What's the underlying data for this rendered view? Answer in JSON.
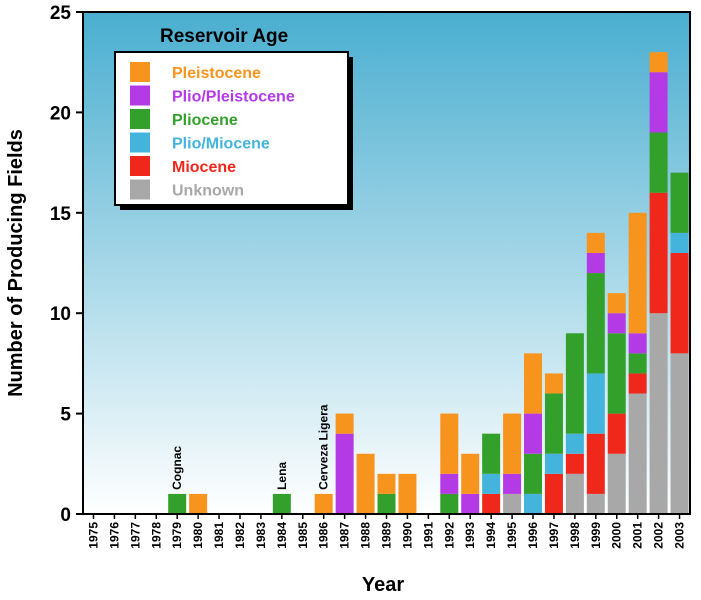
{
  "chart_data": {
    "type": "bar",
    "stacked": true,
    "title": "",
    "xlabel": "Year",
    "ylabel": "Number of Producing Fields",
    "ylim": [
      0,
      25
    ],
    "yticks": [
      0,
      5,
      10,
      15,
      20,
      25
    ],
    "categories": [
      "1975",
      "1976",
      "1977",
      "1978",
      "1979",
      "1980",
      "1981",
      "1982",
      "1983",
      "1984",
      "1985",
      "1986",
      "1987",
      "1988",
      "1989",
      "1990",
      "1991",
      "1992",
      "1993",
      "1994",
      "1995",
      "1996",
      "1997",
      "1998",
      "1999",
      "2000",
      "2001",
      "2002",
      "2003"
    ],
    "legend_title": "Reservoir Age",
    "legend_position": "top-left",
    "series": [
      {
        "name": "Unknown",
        "color": "#a8a8a8",
        "values": [
          0,
          0,
          0,
          0,
          0,
          0,
          0,
          0,
          0,
          0,
          0,
          0,
          0,
          0,
          0,
          0,
          0,
          0,
          0,
          0,
          1,
          0,
          0,
          2,
          1,
          3,
          6,
          10,
          8
        ]
      },
      {
        "name": "Miocene",
        "color": "#f0281c",
        "values": [
          0,
          0,
          0,
          0,
          0,
          0,
          0,
          0,
          0,
          0,
          0,
          0,
          0,
          0,
          0,
          0,
          0,
          0,
          0,
          1,
          0,
          0,
          2,
          1,
          3,
          2,
          1,
          6,
          5
        ]
      },
      {
        "name": "Plio/Miocene",
        "color": "#44b4dc",
        "values": [
          0,
          0,
          0,
          0,
          0,
          0,
          0,
          0,
          0,
          0,
          0,
          0,
          0,
          0,
          0,
          0,
          0,
          0,
          0,
          1,
          0,
          1,
          1,
          1,
          3,
          0,
          0,
          0,
          1
        ]
      },
      {
        "name": "Pliocene",
        "color": "#34a02c",
        "values": [
          0,
          0,
          0,
          0,
          1,
          0,
          0,
          0,
          0,
          1,
          0,
          0,
          0,
          0,
          1,
          0,
          0,
          1,
          0,
          2,
          0,
          2,
          3,
          5,
          5,
          4,
          1,
          3,
          3
        ]
      },
      {
        "name": "Plio/Pleistocene",
        "color": "#b43ae6",
        "values": [
          0,
          0,
          0,
          0,
          0,
          0,
          0,
          0,
          0,
          0,
          0,
          0,
          4,
          0,
          0,
          0,
          0,
          1,
          1,
          0,
          1,
          2,
          0,
          0,
          1,
          1,
          1,
          3,
          0
        ]
      },
      {
        "name": "Pleistocene",
        "color": "#f7941d",
        "values": [
          0,
          0,
          0,
          0,
          0,
          1,
          0,
          0,
          0,
          0,
          0,
          1,
          1,
          3,
          1,
          2,
          0,
          3,
          2,
          0,
          3,
          3,
          1,
          0,
          1,
          1,
          6,
          1,
          0
        ]
      }
    ],
    "annotations": [
      {
        "year": "1979",
        "text": "Cognac"
      },
      {
        "year": "1984",
        "text": "Lena"
      },
      {
        "year": "1986",
        "text": "Cerveza Ligera"
      }
    ],
    "background_gradient": [
      "#4aaed0",
      "#ffffff"
    ]
  }
}
